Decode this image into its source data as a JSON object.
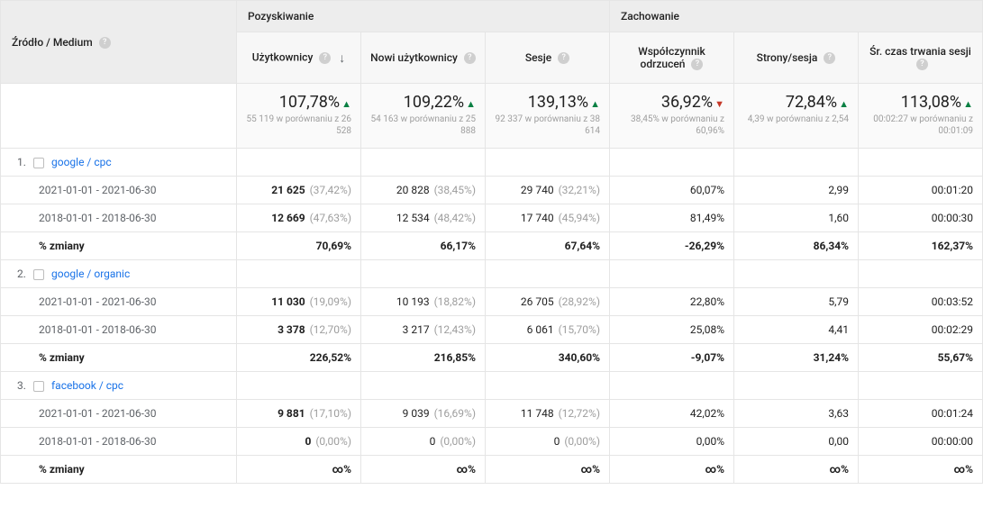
{
  "headers": {
    "dimension": "Źródło / Medium",
    "group_acq": "Pozyskiwanie",
    "group_beh": "Zachowanie",
    "metrics": {
      "users": "Użytkownicy",
      "new_users": "Nowi użytkownicy",
      "sessions": "Sesje",
      "bounce": "Współczynnik odrzuceń",
      "pages": "Strony/sesja",
      "duration": "Śr. czas trwania sesji"
    }
  },
  "summary": {
    "users": {
      "big": "107,78%",
      "dir": "up",
      "sub": "55 119 w porównaniu z 26 528"
    },
    "new_users": {
      "big": "109,22%",
      "dir": "up",
      "sub": "54 163 w porównaniu z 25 888"
    },
    "sessions": {
      "big": "139,13%",
      "dir": "up",
      "sub": "92 337 w porównaniu z 38 614"
    },
    "bounce": {
      "big": "36,92%",
      "dir": "down",
      "sub": "38,45% w porównaniu z 60,96%"
    },
    "pages": {
      "big": "72,84%",
      "dir": "up",
      "sub": "4,39 w porównaniu z 2,54"
    },
    "duration": {
      "big": "113,08%",
      "dir": "up",
      "sub": "00:02:27 w porównaniu z 00:01:09"
    }
  },
  "rows": [
    {
      "idx": "1.",
      "source": "google / cpc",
      "p1": {
        "label": "2021-01-01 - 2021-06-30",
        "users": "21 625",
        "users_pct": "(37,42%)",
        "new_users": "20 828",
        "new_users_pct": "(38,45%)",
        "sessions": "29 740",
        "sessions_pct": "(32,21%)",
        "bounce": "60,07%",
        "pages": "2,99",
        "duration": "00:01:20"
      },
      "p2": {
        "label": "2018-01-01 - 2018-06-30",
        "users": "12 669",
        "users_pct": "(47,63%)",
        "new_users": "12 534",
        "new_users_pct": "(48,42%)",
        "sessions": "17 740",
        "sessions_pct": "(45,94%)",
        "bounce": "81,49%",
        "pages": "1,60",
        "duration": "00:00:30"
      },
      "chg": {
        "label": "% zmiany",
        "users": "70,69%",
        "new_users": "66,17%",
        "sessions": "67,64%",
        "bounce": "-26,29%",
        "pages": "86,34%",
        "duration": "162,37%"
      }
    },
    {
      "idx": "2.",
      "source": "google / organic",
      "p1": {
        "label": "2021-01-01 - 2021-06-30",
        "users": "11 030",
        "users_pct": "(19,09%)",
        "new_users": "10 193",
        "new_users_pct": "(18,82%)",
        "sessions": "26 705",
        "sessions_pct": "(28,92%)",
        "bounce": "22,80%",
        "pages": "5,79",
        "duration": "00:03:52"
      },
      "p2": {
        "label": "2018-01-01 - 2018-06-30",
        "users": "3 378",
        "users_pct": "(12,70%)",
        "new_users": "3 217",
        "new_users_pct": "(12,43%)",
        "sessions": "6 061",
        "sessions_pct": "(15,70%)",
        "bounce": "25,08%",
        "pages": "4,41",
        "duration": "00:02:29"
      },
      "chg": {
        "label": "% zmiany",
        "users": "226,52%",
        "new_users": "216,85%",
        "sessions": "340,60%",
        "bounce": "-9,07%",
        "pages": "31,24%",
        "duration": "55,67%"
      }
    },
    {
      "idx": "3.",
      "source": "facebook / cpc",
      "p1": {
        "label": "2021-01-01 - 2021-06-30",
        "users": "9 881",
        "users_pct": "(17,10%)",
        "new_users": "9 039",
        "new_users_pct": "(16,69%)",
        "sessions": "11 748",
        "sessions_pct": "(12,72%)",
        "bounce": "42,02%",
        "pages": "3,63",
        "duration": "00:01:24"
      },
      "p2": {
        "label": "2018-01-01 - 2018-06-30",
        "users": "0",
        "users_pct": "(0,00%)",
        "new_users": "0",
        "new_users_pct": "(0,00%)",
        "sessions": "0",
        "sessions_pct": "(0,00%)",
        "bounce": "0,00%",
        "pages": "0,00",
        "duration": "00:00:00"
      },
      "chg": {
        "label": "% zmiany",
        "users": "∞%",
        "new_users": "∞%",
        "sessions": "∞%",
        "bounce": "∞%",
        "pages": "∞%",
        "duration": "∞%"
      }
    }
  ]
}
